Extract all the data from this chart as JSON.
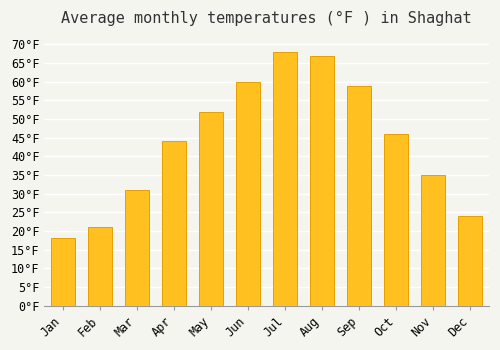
{
  "title": "Average monthly temperatures (°F ) in Shaghat",
  "months": [
    "Jan",
    "Feb",
    "Mar",
    "Apr",
    "May",
    "Jun",
    "Jul",
    "Aug",
    "Sep",
    "Oct",
    "Nov",
    "Dec"
  ],
  "values": [
    18,
    21,
    31,
    44,
    52,
    60,
    68,
    67,
    59,
    46,
    35,
    24
  ],
  "bar_color": "#FFC020",
  "bar_edge_color": "#E8A000",
  "background_color": "#F5F5F0",
  "grid_color": "#FFFFFF",
  "ylim": [
    0,
    72
  ],
  "yticks": [
    0,
    5,
    10,
    15,
    20,
    25,
    30,
    35,
    40,
    45,
    50,
    55,
    60,
    65,
    70
  ],
  "ylabel_suffix": "°F",
  "title_fontsize": 11,
  "tick_fontsize": 8.5
}
